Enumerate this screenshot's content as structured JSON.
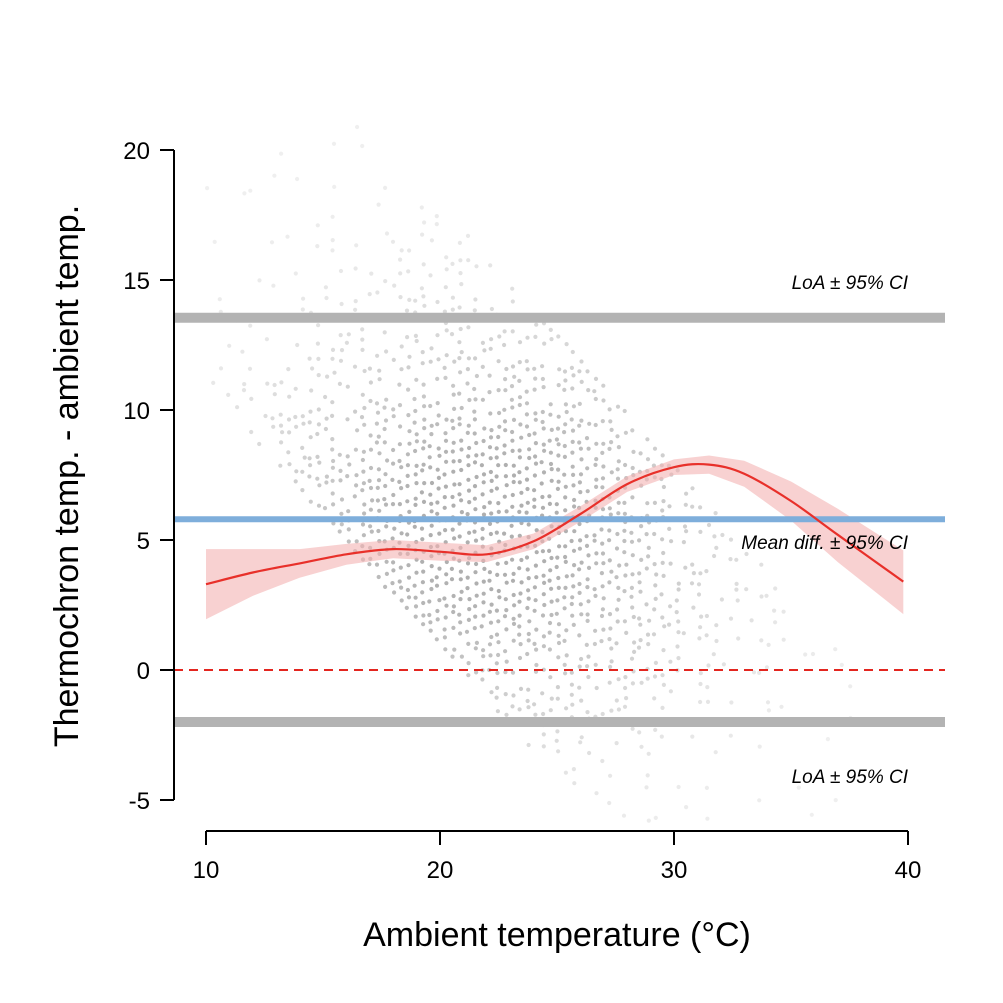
{
  "chart_data": {
    "type": "scatter",
    "title": "",
    "xlabel": "Ambient temperature (°C)",
    "ylabel": "Thermochron temp. - ambient temp.",
    "xlim": [
      8.6,
      41.6
    ],
    "ylim": [
      -5,
      20
    ],
    "x_ticks": [
      10,
      20,
      30,
      40
    ],
    "y_ticks": [
      -5,
      0,
      5,
      10,
      15,
      20
    ],
    "x_tick_labels": [
      "10",
      "20",
      "30",
      "40"
    ],
    "y_tick_labels": [
      "-5",
      "0",
      "5",
      "10",
      "15",
      "20"
    ],
    "grid": false,
    "legend": "none",
    "reference_lines": {
      "upper_loa": 13.55,
      "mean_diff": 5.8,
      "lower_loa": -2.0,
      "zero": 0
    },
    "annotations": {
      "upper_loa_label": "LoA ± 95% CI",
      "mean_label": "Mean diff. ± 95% CI",
      "lower_loa_label": "LoA ± 95% CI"
    },
    "smooth_fit": {
      "x": [
        10,
        12,
        14,
        16,
        18,
        20,
        22,
        24,
        26,
        28,
        30,
        31.5,
        33,
        35,
        37,
        39.8
      ],
      "y": [
        3.3,
        3.75,
        4.1,
        4.45,
        4.65,
        4.55,
        4.45,
        4.95,
        6.0,
        7.15,
        7.8,
        7.9,
        7.55,
        6.5,
        5.2,
        3.4
      ],
      "lo": [
        1.95,
        2.85,
        3.55,
        4.05,
        4.3,
        4.2,
        4.15,
        4.65,
        5.7,
        6.85,
        7.5,
        7.55,
        7.05,
        5.75,
        4.15,
        2.15
      ],
      "hi": [
        4.65,
        4.65,
        4.65,
        4.85,
        5.0,
        4.9,
        4.8,
        5.25,
        6.3,
        7.45,
        8.1,
        8.25,
        8.05,
        7.25,
        6.2,
        4.6
      ]
    },
    "scatter_cloud": {
      "diagonal_slope": -1,
      "intercept_min": 21,
      "intercept_max": 38,
      "intercept_step": 0.42,
      "x_min": 10,
      "x_max": 38.5,
      "x_center": 22,
      "y_center": 5.5
    },
    "colors": {
      "points": "#6e6e6e",
      "loa": "#b3b3b3",
      "mean": "#7eaedb",
      "zero": "#e3261f",
      "fit": "#e8302a",
      "band": "#f4b3b3"
    }
  }
}
